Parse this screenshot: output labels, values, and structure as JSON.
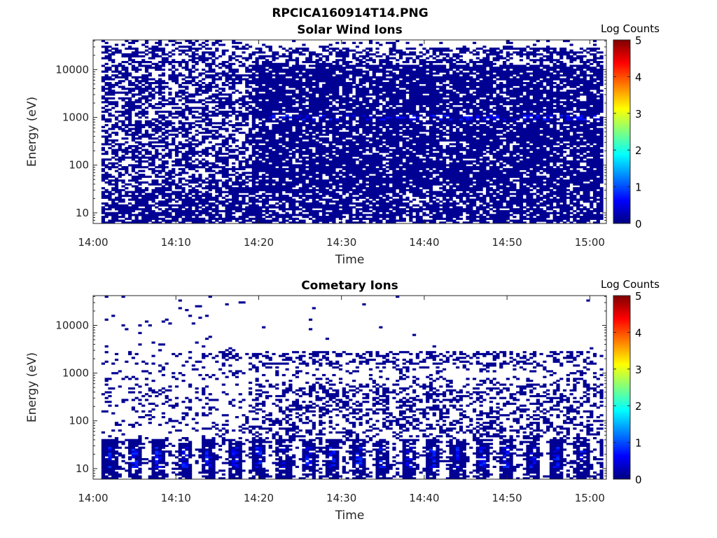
{
  "figure_title": "RPCICA160914T14.PNG",
  "colormap": {
    "name": "jet",
    "label": "Log Counts",
    "range": [
      0,
      5
    ],
    "ticks": [
      "0",
      "1",
      "2",
      "3",
      "4",
      "5"
    ],
    "stops": [
      "#00007f",
      "#0000ff",
      "#007fff",
      "#00ffff",
      "#7fff7f",
      "#ffff00",
      "#ff7f00",
      "#ff0000",
      "#7f0000"
    ]
  },
  "chart_data": [
    {
      "type": "heatmap",
      "title": "Solar Wind Ions",
      "xlabel": "Time",
      "ylabel": "Energy (eV)",
      "x_ticks": [
        "14:00",
        "14:10",
        "14:20",
        "14:30",
        "14:40",
        "14:50",
        "15:00"
      ],
      "y_ticks": [
        "10",
        "100",
        "1000",
        "10000"
      ],
      "y_scale": "log",
      "x_range": [
        "14:00",
        "15:02"
      ],
      "y_range": [
        6,
        42000
      ],
      "data_start": "14:01",
      "color_scale": "Log Counts",
      "value_range": [
        0,
        5
      ],
      "dominant_value": 0.1,
      "peak_band_eV": 1000,
      "peak_value": 0.8
    },
    {
      "type": "heatmap",
      "title": "Cometary Ions",
      "xlabel": "Time",
      "ylabel": "Energy (eV)",
      "x_ticks": [
        "14:00",
        "14:10",
        "14:20",
        "14:30",
        "14:40",
        "14:50",
        "15:00"
      ],
      "y_ticks": [
        "10",
        "100",
        "1000",
        "10000"
      ],
      "y_scale": "log",
      "x_range": [
        "14:00",
        "15:02"
      ],
      "y_range": [
        6,
        42000
      ],
      "data_start": "14:01",
      "color_scale": "Log Counts",
      "value_range": [
        0,
        5
      ],
      "dominant_value": 0.1,
      "burst_band_eV": [
        10,
        30
      ],
      "burst_period_min": 3,
      "peak_value": 0.9
    }
  ]
}
